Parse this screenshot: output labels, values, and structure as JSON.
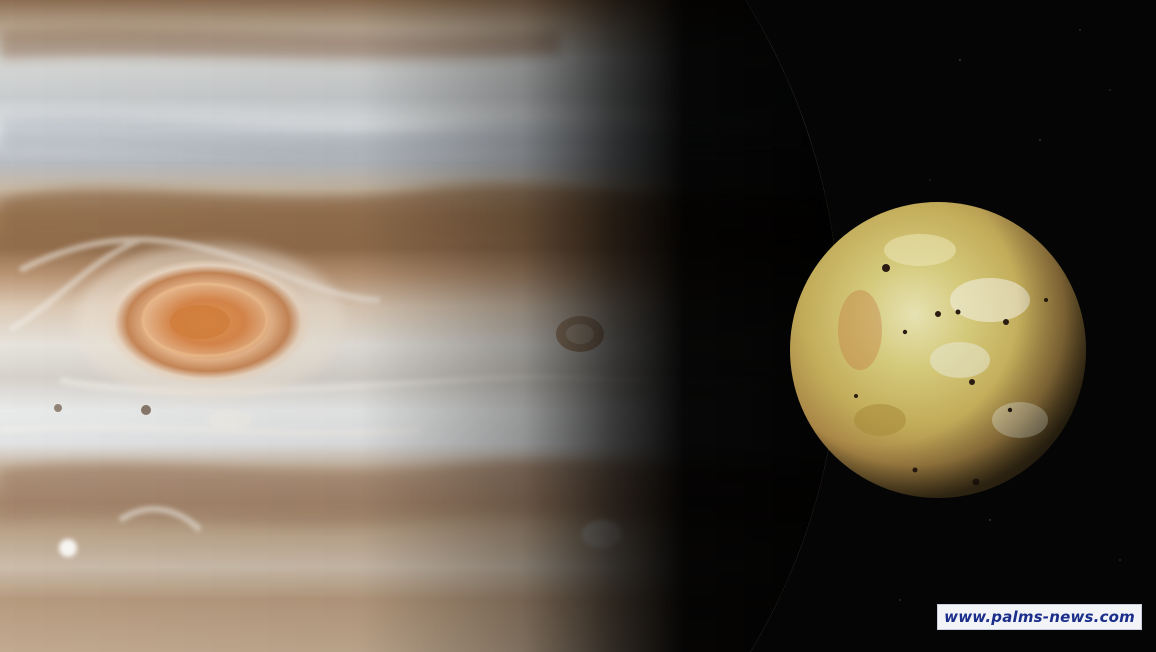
{
  "image": {
    "subject": "Jupiter with Great Red Spot and moon Io against space",
    "colors": {
      "space": "#050505",
      "jupiter_light_band": "#d9dde0",
      "jupiter_brown_band": "#9a7656",
      "great_red_spot": "#d98a45",
      "io_surface": "#c8b960",
      "watermark_text": "#1a2e8a",
      "watermark_bg": "#f2f4f8"
    }
  },
  "watermark": {
    "text": "www.palms-news.com"
  }
}
